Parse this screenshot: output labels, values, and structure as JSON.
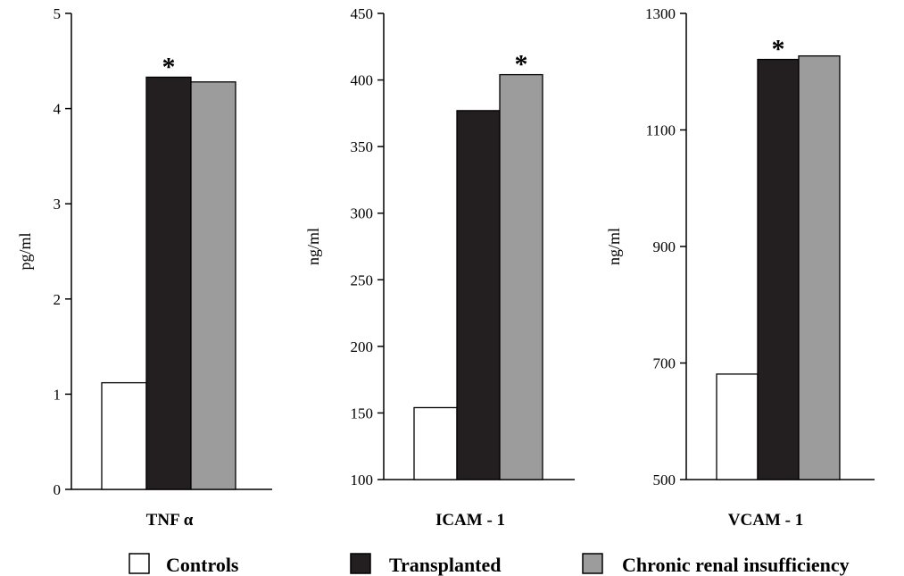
{
  "colors": {
    "controls": "#ffffff",
    "transplanted": "#231f20",
    "chronic": "#9c9c9c",
    "outline": "#000000"
  },
  "legend": [
    {
      "key": "controls",
      "label": "Controls"
    },
    {
      "key": "transplanted",
      "label": "Transplanted"
    },
    {
      "key": "chronic",
      "label": "Chronic renal insufficiency"
    }
  ],
  "chart_data": [
    {
      "type": "bar",
      "title": "",
      "xlabel": "TNF α",
      "ylabel": "pg/ml",
      "ylim": [
        0,
        5
      ],
      "yticks": [
        0,
        1,
        2,
        3,
        4,
        5
      ],
      "series": [
        {
          "name": "Controls",
          "values": [
            1.12
          ]
        },
        {
          "name": "Transplanted",
          "values": [
            4.33
          ]
        },
        {
          "name": "Chronic renal insufficiency",
          "values": [
            4.28
          ]
        }
      ],
      "annotation": "*",
      "annotation_series": "Transplanted"
    },
    {
      "type": "bar",
      "title": "",
      "xlabel": "ICAM  - 1",
      "ylabel": "ng/ml",
      "ylim": [
        100,
        450
      ],
      "yticks": [
        100,
        150,
        200,
        250,
        300,
        350,
        400,
        450
      ],
      "series": [
        {
          "name": "Controls",
          "values": [
            154
          ]
        },
        {
          "name": "Transplanted",
          "values": [
            377
          ]
        },
        {
          "name": "Chronic renal insufficiency",
          "values": [
            404
          ]
        }
      ],
      "annotation": "*",
      "annotation_series": "Chronic renal insufficiency"
    },
    {
      "type": "bar",
      "title": "",
      "xlabel": "VCAM - 1",
      "ylabel": "ng/ml",
      "ylim": [
        500,
        1300
      ],
      "yticks": [
        500,
        700,
        900,
        1100,
        1300
      ],
      "series": [
        {
          "name": "Controls",
          "values": [
            681
          ]
        },
        {
          "name": "Transplanted",
          "values": [
            1221
          ]
        },
        {
          "name": "Chronic renal insufficiency",
          "values": [
            1227
          ]
        }
      ],
      "annotation": "*",
      "annotation_series": "Transplanted"
    }
  ]
}
